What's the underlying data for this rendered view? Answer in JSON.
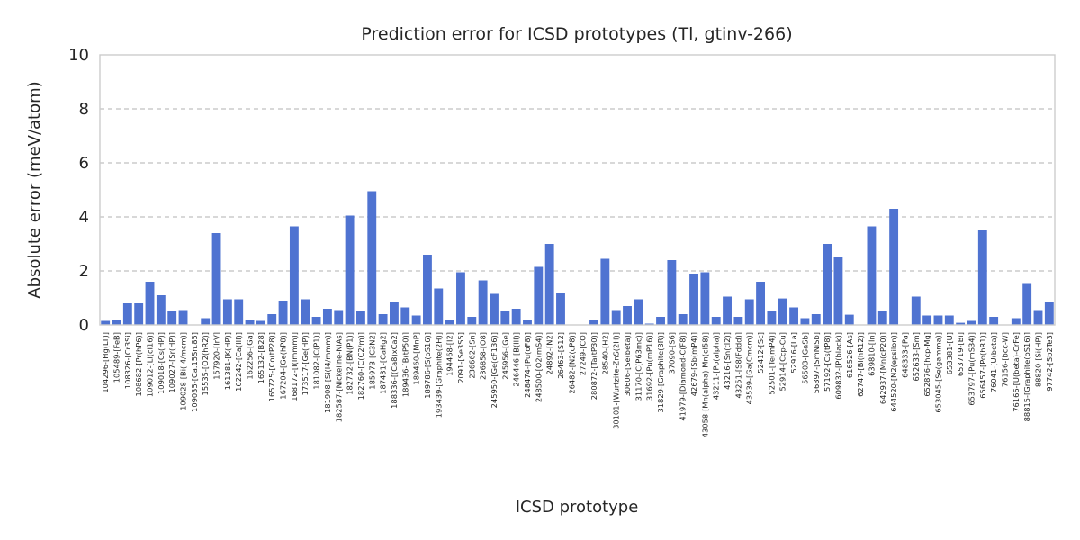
{
  "chart_data": {
    "type": "bar",
    "title": "Prediction error for ICSD prototypes (Tl, gtinv-266)",
    "xlabel": "ICSD prototype",
    "ylabel": "Absolute error (meV/atom)",
    "ylim": [
      0,
      10
    ],
    "yticks": [
      0,
      2,
      4,
      6,
      8,
      10
    ],
    "grid": "y-dashed",
    "bar_color": "#4f73d1",
    "categories": [
      "104296-[Hg(LT)]",
      "105489-[FeB]",
      "108326-[Cr3Si]",
      "108682-[Pr(hP6)]",
      "109012-[Li(cI16)]",
      "109018-[Cs(HP)]",
      "109027-[Sr(HP)]",
      "109028-[Bi(I4/mcm)]",
      "109035-[Ca.15Sn.85]",
      "15535-[O2(hR2)]",
      "157920-[IrV]",
      "161381-[K(HP)]",
      "162242-[Ca(III)]",
      "162256-[Ga]",
      "165132-[B28]",
      "165725-[Co(tP28)]",
      "167204-[Ge(hP8)]",
      "168172-[I(Immm)]",
      "173517-[Ge(HP)]",
      "181082-[C(P1)]",
      "181908-[Si(I4/mmm)]",
      "182587-[Nickeline-NiAs]",
      "182732-[BN(P1)]",
      "182760-[C(C2/m)]",
      "185973-[C3N2]",
      "187431-[CaHg2]",
      "188336-[(Ca8)xCa2]",
      "189436-[B(tP50)]",
      "189460-[MnP]",
      "189786-[S(oS16)]",
      "193439-[Graphite(2H)]",
      "194468-[I2]",
      "2091-[Se3S5]",
      "236662-[Sn]",
      "236858-[O8]",
      "245950-[Ge(cF136)]",
      "245956-[Ge]",
      "246446-[B(III)]",
      "248474-[Pu(oF8)]",
      "248500-[O2(mS4)]",
      "24892-[N2]",
      "26463-[S12]",
      "26482-[N2(cP8)]",
      "27249-[CO]",
      "280872-[Ta(tP30)]",
      "28540-[H2]",
      "30101-[Wurtzite-ZnS(2H)]",
      "30606-[Se(beta)]",
      "31170-[C(P63mc)]",
      "31692-[Pu(mP16)]",
      "31829-[Graphite(3R)]",
      "37090-[S6]",
      "41979-[Diamond-C(F8)]",
      "42679-[Sb(mP4)]",
      "43058-[Mn(alpha)-Mn(cI58)]",
      "43211-[Po(alpha)]",
      "43216-[Sn(tI2)]",
      "43251-[S8(Fddd)]",
      "43539-[Ga(Cmcm)]",
      "52412-[Sc]",
      "52501-[Te(mP4)]",
      "52914-[Ccp-Cu]",
      "52916-[La]",
      "56503-[GaSb]",
      "56897-[SmNiSb]",
      "57192-[Cs(tP8)]",
      "609832-[P(black)]",
      "616526-[As]",
      "62747-[Bi(hR12)]",
      "639810-[In]",
      "642937-[Mn(cP20)]",
      "644520-[N2(epsilon)]",
      "648333-[Pa]",
      "652633-[Sm]",
      "652876-[hcp-Mg]",
      "653045-[Se(gamma)]",
      "653381-[U]",
      "653719-[Bi]",
      "653797-[Pu(mS34)]",
      "656457-[Po(hR1)]",
      "76041-[U(beta)]",
      "76156-[bcc-W]",
      "76166-[U(beta)-CrFe]",
      "88815-[Graphite(oS16)]",
      "88820-[Si(HP)]",
      "97742-[Sb2Te3]"
    ],
    "values": [
      0.15,
      0.2,
      0.8,
      0.8,
      1.6,
      1.1,
      0.5,
      0.55,
      0.0,
      0.25,
      3.4,
      0.95,
      0.95,
      0.2,
      0.15,
      0.4,
      0.9,
      3.65,
      0.95,
      0.3,
      0.6,
      0.55,
      4.05,
      0.5,
      4.95,
      0.4,
      0.85,
      0.65,
      0.35,
      2.6,
      1.35,
      0.18,
      1.95,
      0.3,
      1.65,
      1.15,
      0.5,
      0.6,
      0.2,
      2.15,
      3.0,
      1.2,
      0.0,
      0.0,
      0.2,
      2.45,
      0.55,
      0.7,
      0.95,
      0.05,
      0.3,
      2.4,
      0.4,
      1.9,
      1.95,
      0.3,
      1.05,
      0.3,
      0.95,
      1.6,
      0.5,
      0.98,
      0.65,
      0.25,
      0.4,
      3.0,
      2.5,
      0.38,
      0.0,
      3.65,
      0.5,
      4.3,
      0.0,
      1.05,
      0.35,
      0.35,
      0.35,
      0.08,
      0.15,
      3.5,
      0.3,
      0.0,
      0.25,
      1.55,
      0.55,
      0.85
    ]
  }
}
